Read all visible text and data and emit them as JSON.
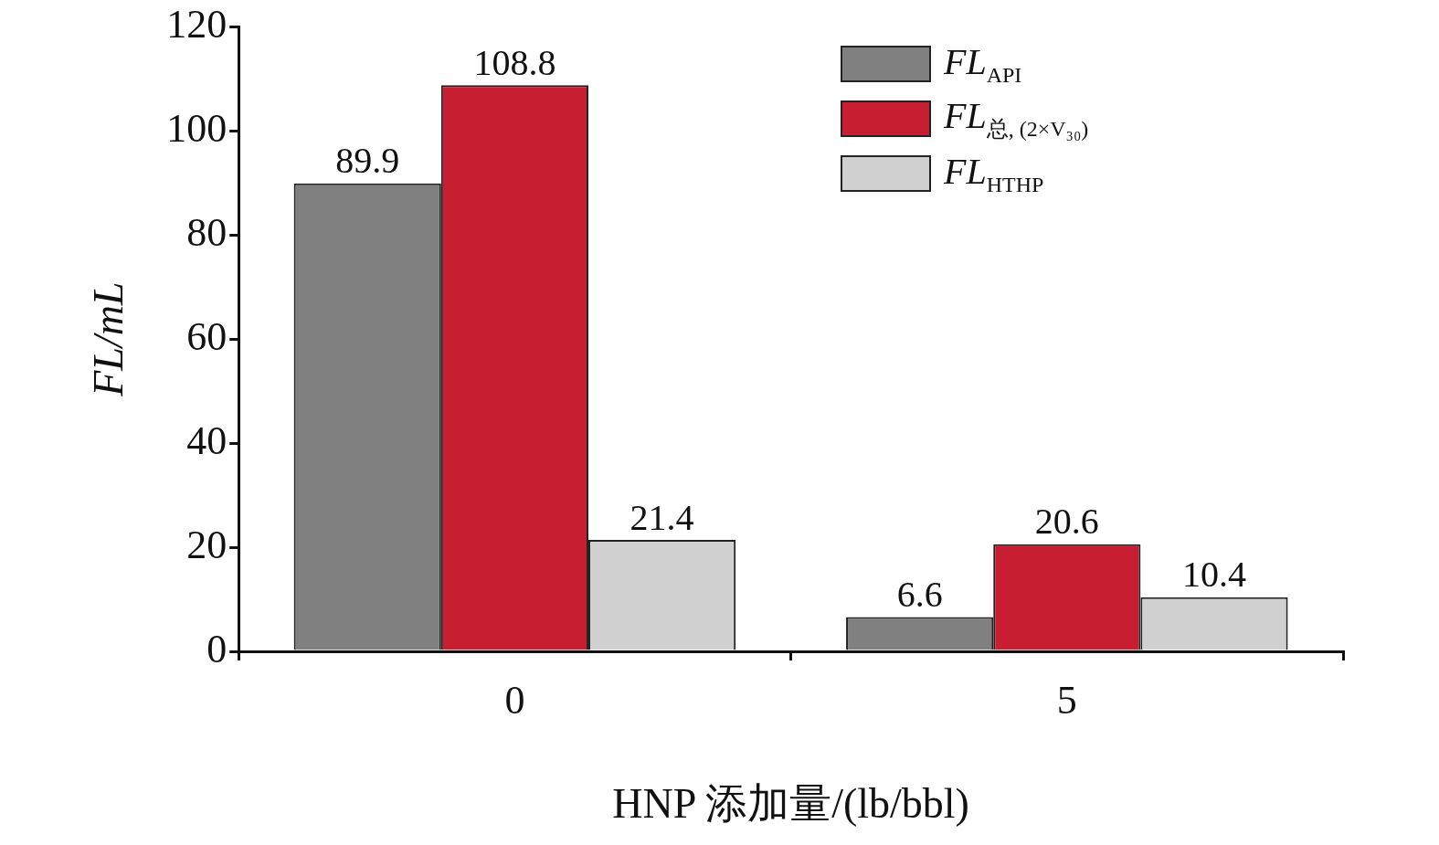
{
  "chart_data": {
    "type": "bar",
    "xlabel": "HNP 添加量/(lb/bbl)",
    "ylabel": "FL/mL",
    "categories": [
      "0",
      "5"
    ],
    "series": [
      {
        "name": "FL$_{API}$",
        "color": "#808080",
        "values": [
          89.9,
          6.6
        ]
      },
      {
        "name": "FL$_{总, (2×V₃₀)}$",
        "color": "#c81e32",
        "values": [
          108.8,
          20.6
        ]
      },
      {
        "name": "FL$_{HTHP}$",
        "color": "#d0d0d0",
        "values": [
          21.4,
          10.4
        ]
      }
    ],
    "ylim": [
      0,
      120
    ],
    "yticks": [
      0,
      20,
      40,
      60,
      80,
      100,
      120
    ],
    "grid": false,
    "legend": "top right",
    "data_labels": true
  }
}
